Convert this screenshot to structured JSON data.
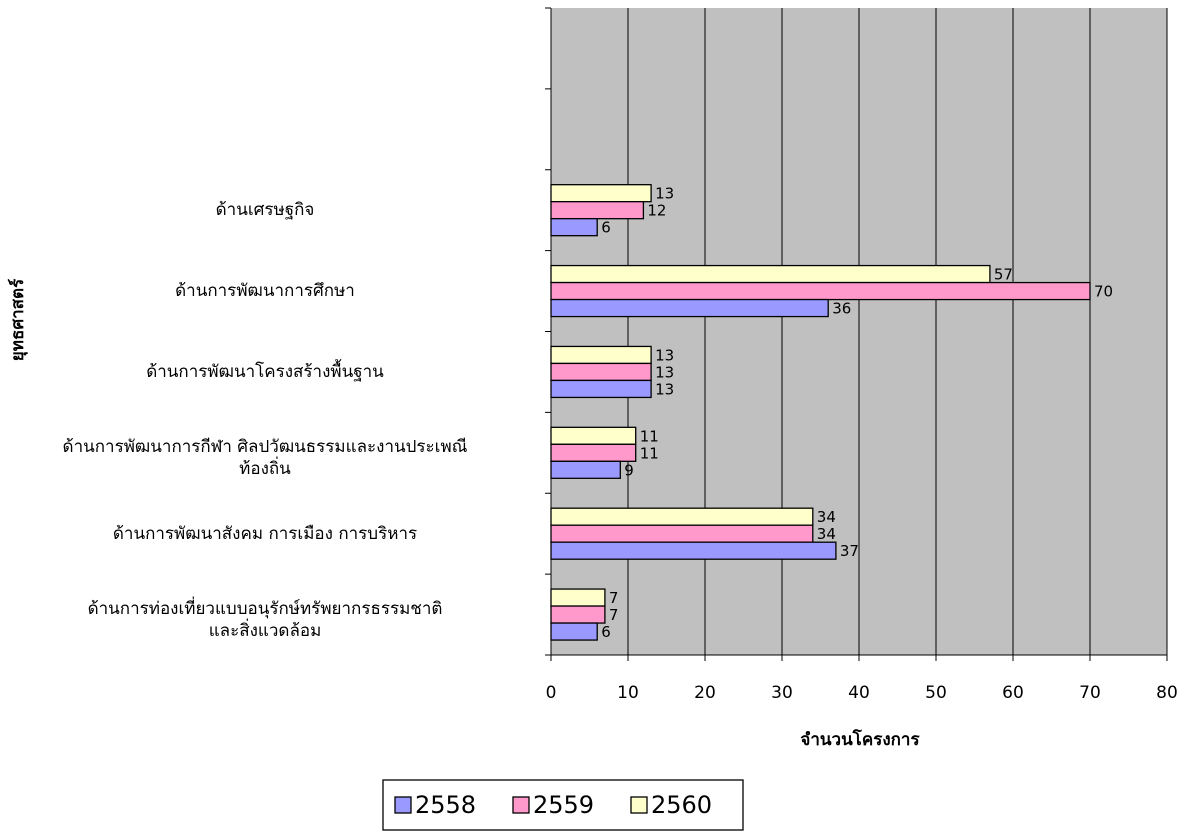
{
  "chart_data": {
    "type": "hbar",
    "y_axis_label": "ยุทธศาสตร์",
    "x_axis_label": "จำนวนโครงการ",
    "categories": [
      null,
      null,
      "ด้านเศรษฐกิจ",
      "ด้านการพัฒนาการศึกษา",
      "ด้านการพัฒนาโครงสร้างพื้นฐาน",
      "ด้านการพัฒนาการกีฬา ศิลปวัฒนธรรมและงานประเพณี\nท้องถิ่น",
      "ด้านการพัฒนาสังคม การเมือง การบริหาร",
      "ด้านการท่องเที่ยวแบบอนุรักษ์ทรัพยากรธรรมชาติ\nและสิ่งแวดล้อม"
    ],
    "series": [
      {
        "name": "2560",
        "color": "#ffffcc",
        "values": [
          null,
          null,
          13,
          57,
          13,
          11,
          34,
          7
        ]
      },
      {
        "name": "2559",
        "color": "#ff99cc",
        "values": [
          null,
          null,
          12,
          70,
          13,
          11,
          34,
          7
        ]
      },
      {
        "name": "2558",
        "color": "#9999ff",
        "values": [
          null,
          null,
          6,
          36,
          13,
          9,
          37,
          6
        ]
      }
    ],
    "legend_order": [
      "2558",
      "2559",
      "2560"
    ],
    "xlim": [
      0,
      80
    ],
    "xticks": [
      0,
      10,
      20,
      30,
      40,
      50,
      60,
      70,
      80
    ],
    "grid": true,
    "plot_background": "#c0c0c0",
    "legend": "bottom"
  }
}
